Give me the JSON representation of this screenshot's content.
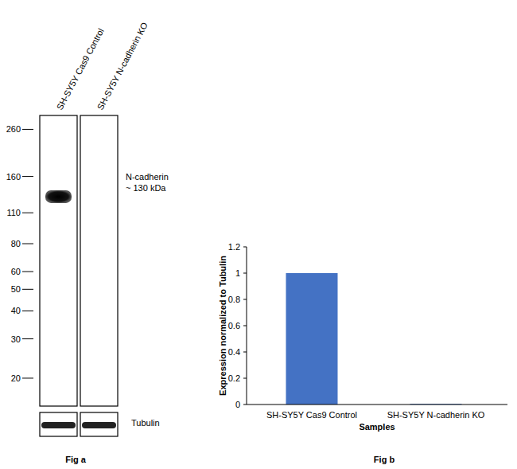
{
  "chart_data": {
    "type": "bar",
    "caption": "Fig b",
    "categories": [
      "SH-SY5Y Cas9 Control",
      "SH-SY5Y N-cadherin KO"
    ],
    "values": [
      1,
      0.005
    ],
    "color": "#4472c4",
    "ylabel": "Expression normalized to Tubulin",
    "xlabel": "Samples",
    "ylim": [
      0,
      1.2
    ],
    "yticks": [
      0,
      0.2,
      0.4,
      0.6,
      0.8,
      1,
      1.2
    ],
    "grid": false
  },
  "blot": {
    "caption": "Fig a",
    "lanes": [
      "SH-SY5Y Cas9 Control",
      "SH-SY5Y N-cadherin KO"
    ],
    "log": true,
    "mw_range": [
      300,
      15
    ],
    "markers": [
      260,
      160,
      110,
      80,
      60,
      50,
      40,
      30,
      20
    ],
    "target": "N-cadherin",
    "target_label": "~ 130 kDa",
    "bands": [
      {
        "lane": 0,
        "kda": 130
      }
    ],
    "loading_control": "Tubulin"
  }
}
